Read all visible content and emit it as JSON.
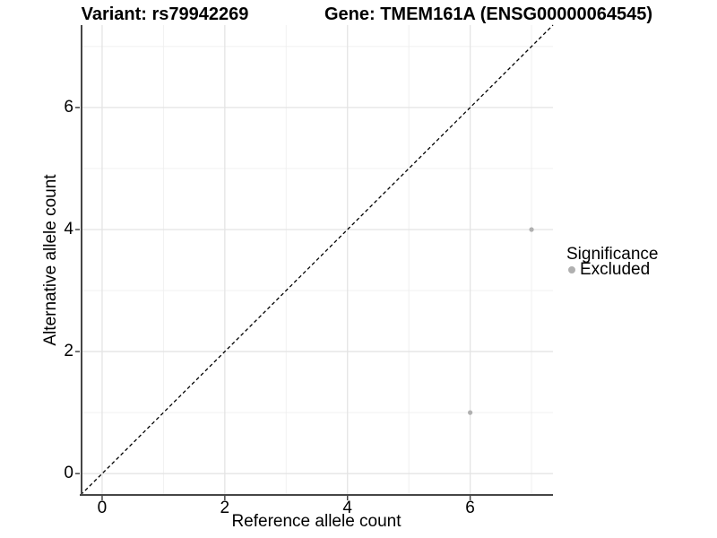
{
  "titles": {
    "left": "Variant: rs79942269",
    "right": "Gene: TMEM161A (ENSG00000064545)"
  },
  "chart_data": {
    "type": "scatter",
    "title": "Variant: rs79942269    Gene: TMEM161A (ENSG00000064545)",
    "xlabel": "Reference allele count",
    "ylabel": "Alternative allele count",
    "xlim": [
      -0.35,
      7.35
    ],
    "ylim": [
      -0.35,
      7.35
    ],
    "x_ticks": [
      0,
      2,
      4,
      6
    ],
    "y_ticks": [
      0,
      2,
      4,
      6
    ],
    "x_minor_ticks": [
      1,
      3,
      5,
      7
    ],
    "y_minor_ticks": [
      1,
      3,
      5,
      7
    ],
    "grid": true,
    "identity_line": {
      "style": "dashed",
      "color": "#000000",
      "from": [
        -0.35,
        -0.35
      ],
      "to": [
        7.35,
        7.35
      ]
    },
    "series": [
      {
        "name": "Excluded",
        "color": "#b0b0b0",
        "points": [
          {
            "x": 7,
            "y": 4
          },
          {
            "x": 6,
            "y": 1
          }
        ]
      }
    ],
    "legend": {
      "title": "Significance",
      "position": "right",
      "entries": [
        {
          "label": "Excluded",
          "color": "#b0b0b0"
        }
      ]
    }
  }
}
